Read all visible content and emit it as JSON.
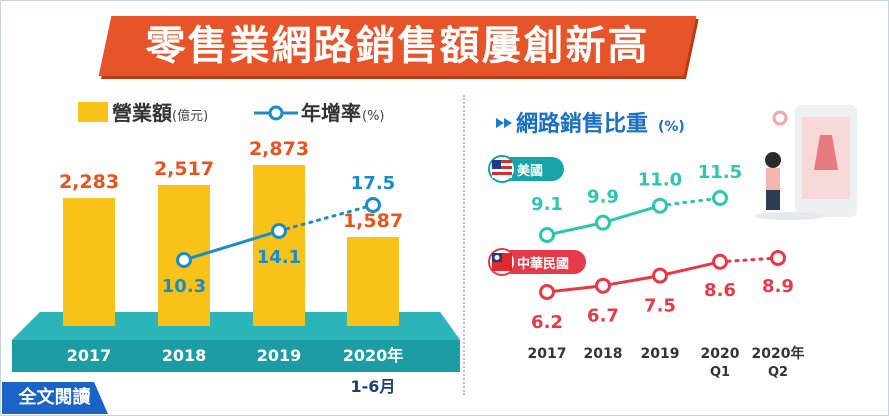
{
  "title": "零售業網路銷售額屢創新高",
  "read_more": "全文閱讀",
  "colors": {
    "bar": "#f8c218",
    "growth": "#1a8dc8",
    "platform": "#17a4a8",
    "us": "#2cc7b0",
    "tw": "#e63a4a",
    "banner": "#e8542a",
    "value_label": "#e8541e"
  },
  "left_chart": {
    "legend": {
      "bar_label": "營業額",
      "bar_unit": "(億元)",
      "line_label": "年增率",
      "line_unit": "(%)"
    },
    "chart_data": {
      "type": "bar",
      "categories": [
        "2017",
        "2018",
        "2019",
        "2020年"
      ],
      "category_sub": [
        "",
        "",
        "",
        "1-6月"
      ],
      "series": [
        {
          "name": "營業額",
          "values": [
            2283,
            2517,
            2873,
            1587
          ],
          "labels": [
            "2,283",
            "2,517",
            "2,873",
            "1,587"
          ]
        },
        {
          "name": "年增率",
          "type": "line",
          "values": [
            null,
            10.3,
            14.1,
            17.5
          ],
          "labels": [
            "",
            "10.3",
            "14.1",
            "17.5"
          ]
        }
      ],
      "ylim": [
        0,
        3200
      ]
    }
  },
  "right_chart": {
    "title": "網路銷售比重",
    "unit": "(%)",
    "chart_data": {
      "type": "line",
      "categories": [
        "2017",
        "2018",
        "2019",
        "2020",
        "2020年"
      ],
      "category_sub": [
        "",
        "",
        "",
        "Q1",
        "Q2"
      ],
      "series": [
        {
          "name": "美國",
          "values": [
            9.1,
            9.9,
            11.0,
            11.5,
            null
          ],
          "labels": [
            "9.1",
            "9.9",
            "11.0",
            "11.5",
            ""
          ]
        },
        {
          "name": "中華民國",
          "values": [
            6.2,
            6.7,
            7.5,
            8.6,
            8.9
          ],
          "labels": [
            "6.2",
            "6.7",
            "7.5",
            "8.6",
            "8.9"
          ]
        }
      ]
    }
  }
}
